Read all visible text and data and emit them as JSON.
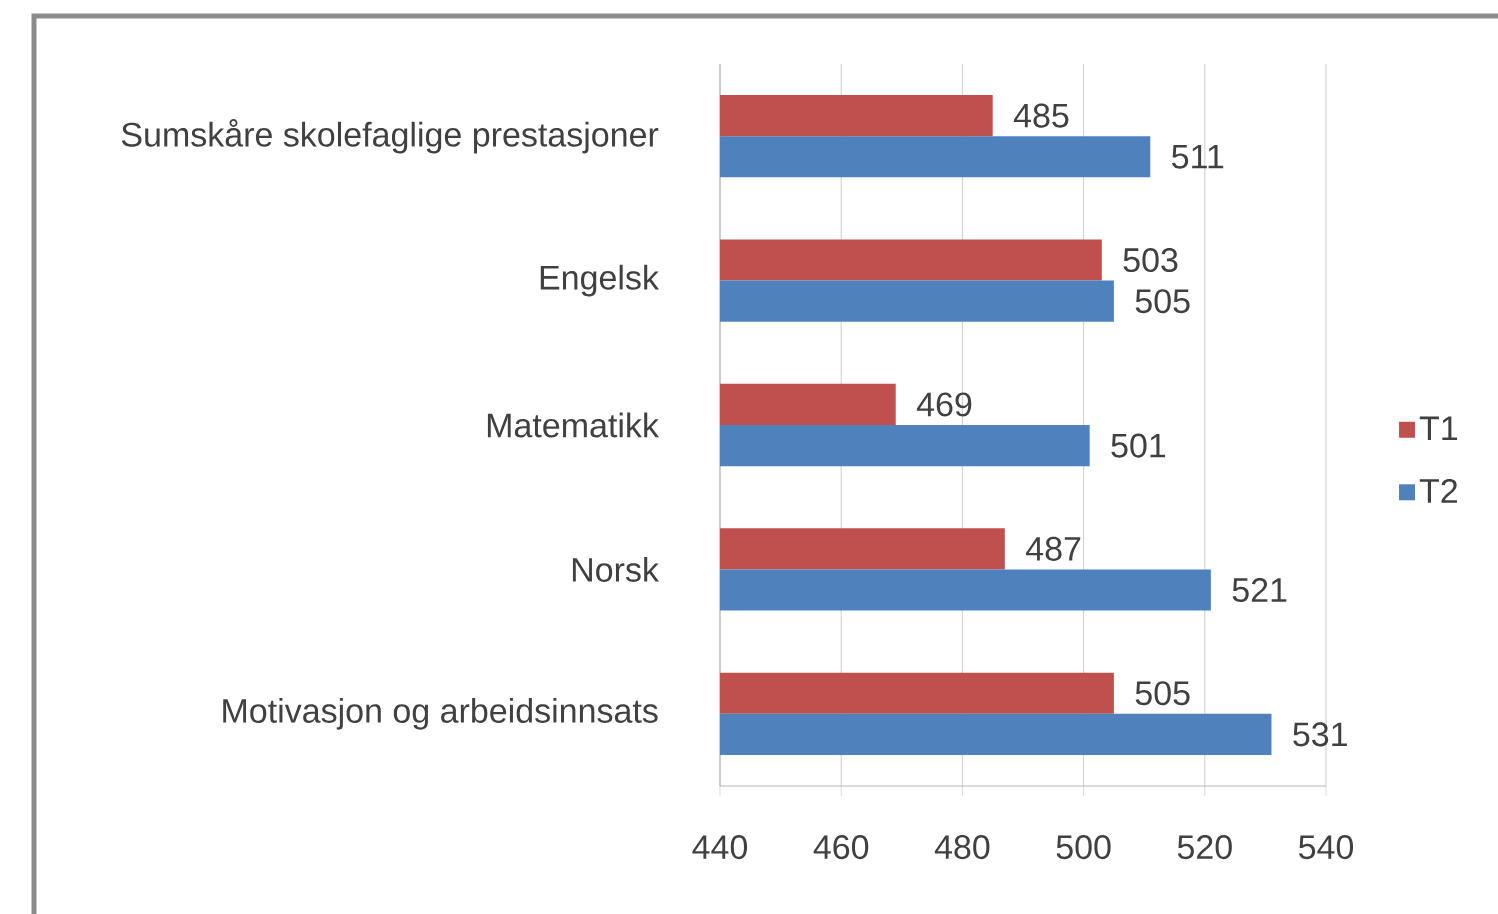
{
  "chart_data": {
    "type": "bar",
    "orientation": "horizontal",
    "categories": [
      "Sumskåre skolefaglige prestasjoner",
      "Engelsk",
      "Matematikk",
      "Norsk",
      "Motivasjon og arbeidsinnsats"
    ],
    "series": [
      {
        "name": "T1",
        "color": "#c0504d",
        "values": [
          485,
          503,
          469,
          487,
          505
        ]
      },
      {
        "name": "T2",
        "color": "#4f81bd",
        "values": [
          511,
          505,
          501,
          521,
          531
        ]
      }
    ],
    "xlim": [
      440,
      540
    ],
    "xticks": [
      440,
      460,
      480,
      500,
      520,
      540
    ],
    "grid": "x",
    "legend": "right",
    "data_labels": true
  }
}
